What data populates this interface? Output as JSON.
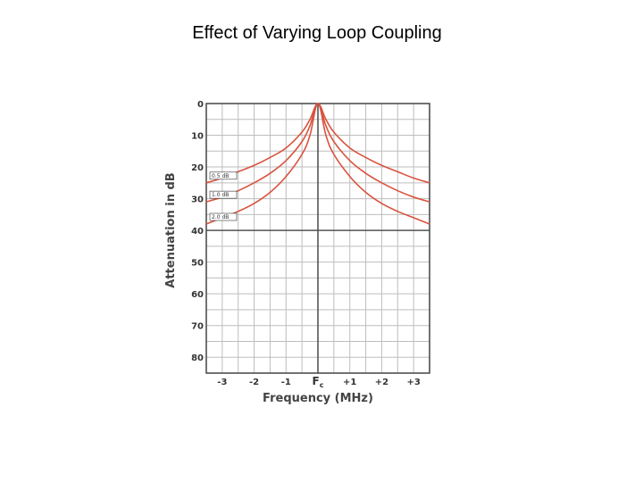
{
  "slide": {
    "title": "Effect of Varying Loop Coupling"
  },
  "chart_data": {
    "type": "line",
    "title": "",
    "xlabel": "Frequency (MHz)",
    "ylabel": "Attenuation in dB",
    "x_ticks": [
      "-3",
      "-2",
      "-1",
      "Fc",
      "+1",
      "+2",
      "+3"
    ],
    "y_ticks": [
      "0",
      "10",
      "20",
      "30",
      "40",
      "50",
      "60",
      "70",
      "80"
    ],
    "xlim": [
      -3.5,
      3.5
    ],
    "ylim": [
      0,
      85
    ],
    "y_inverted": true,
    "grid": true,
    "legend_placement": "left",
    "series": [
      {
        "name": "0.5 dB",
        "x": [
          -3.5,
          -3,
          -2.5,
          -2,
          -1.5,
          -1,
          -0.5,
          -0.25,
          0,
          0.25,
          0.5,
          1,
          1.5,
          2,
          2.5,
          3,
          3.5
        ],
        "y": [
          25,
          23.5,
          21.5,
          19.5,
          17,
          14,
          9,
          5,
          0,
          5,
          9,
          14,
          17,
          19.5,
          21.5,
          23.5,
          25
        ]
      },
      {
        "name": "1.0 dB",
        "x": [
          -3.5,
          -3,
          -2.5,
          -2,
          -1.5,
          -1,
          -0.5,
          -0.25,
          0,
          0.25,
          0.5,
          1,
          1.5,
          2,
          2.5,
          3,
          3.5
        ],
        "y": [
          31,
          29.5,
          27.5,
          25,
          22,
          18,
          12,
          7,
          0,
          7,
          12,
          18,
          22,
          25,
          27.5,
          29.5,
          31
        ]
      },
      {
        "name": "2.0 dB",
        "x": [
          -3.5,
          -3,
          -2.5,
          -2,
          -1.5,
          -1,
          -0.5,
          -0.25,
          0,
          0.25,
          0.5,
          1,
          1.5,
          2,
          2.5,
          3,
          3.5
        ],
        "y": [
          38,
          36,
          34,
          31.5,
          28,
          23,
          16,
          10,
          0,
          10,
          16,
          23,
          28,
          31.5,
          34,
          36,
          38
        ]
      }
    ],
    "colors": {
      "series": "#d9533f",
      "grid_minor": "#bdbdbd",
      "grid_major": "#555555",
      "frame": "#444444"
    }
  }
}
